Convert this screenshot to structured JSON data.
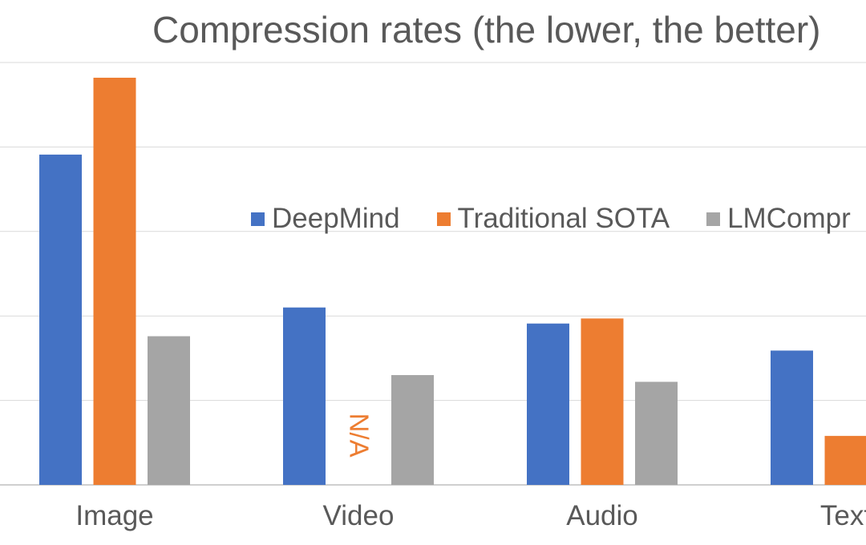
{
  "chart_data": {
    "type": "bar",
    "title": "Compression rates (the lower, the better)",
    "categories": [
      "Image",
      "Video",
      "Audio",
      "Text"
    ],
    "series": [
      {
        "name": "DeepMind",
        "color": "#4472C4",
        "values": [
          39.1,
          21.0,
          19.1,
          15.9
        ]
      },
      {
        "name": "Traditional SOTA",
        "color": "#ED7D31",
        "values": [
          48.2,
          null,
          19.7,
          5.8
        ]
      },
      {
        "name": "LMCompr",
        "color": "#A5A5A5",
        "values": [
          17.6,
          13.0,
          12.2,
          null
        ]
      }
    ],
    "annotations": [
      {
        "category": "Video",
        "series": "Traditional SOTA",
        "text": "N/A"
      }
    ],
    "ylim": [
      0,
      50
    ],
    "grid": true,
    "xlabel": "",
    "ylabel": "",
    "legend_position": "inside-center"
  }
}
